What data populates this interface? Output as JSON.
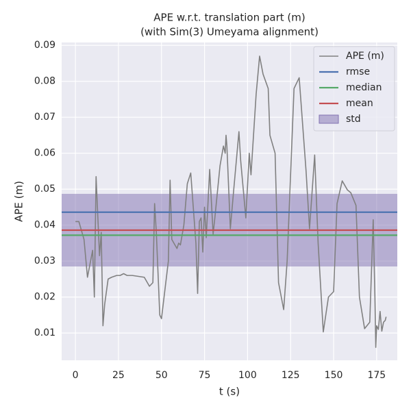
{
  "chart_data": {
    "type": "line",
    "title": [
      "APE w.r.t. translation part (m)",
      "(with Sim(3) Umeyama alignment)"
    ],
    "x_label": "t (s)",
    "y_label": "APE (m)",
    "xlim": [
      -8,
      187
    ],
    "xticks": [
      0,
      25,
      50,
      75,
      100,
      125,
      150,
      175
    ],
    "ylim": [
      0.0024,
      0.0908
    ],
    "yticks": [
      0.01,
      0.02,
      0.03,
      0.04,
      0.05,
      0.06,
      0.07,
      0.08,
      0.09
    ],
    "grid": true,
    "legend": "upper right",
    "series": [
      {
        "name": "APE (m)",
        "color": "#808080",
        "x": [
          0,
          2,
          5,
          7,
          10,
          11,
          12,
          14,
          15,
          16,
          17,
          19,
          21,
          24,
          26,
          28,
          30,
          33,
          40,
          43,
          45,
          46,
          47,
          49,
          50,
          54,
          55,
          56,
          59,
          60,
          61,
          63,
          65,
          67,
          70,
          71,
          72,
          73,
          74,
          75,
          76,
          78,
          80,
          81,
          84,
          86,
          87,
          87.5,
          88,
          90,
          92,
          95,
          96,
          99,
          101,
          102,
          105,
          107,
          109,
          112,
          113,
          116,
          118,
          121,
          123,
          127,
          130,
          134,
          136,
          139,
          141,
          144,
          147,
          150,
          152,
          155,
          158,
          160,
          163,
          165,
          168,
          171,
          173,
          174,
          174.5,
          175,
          176,
          177,
          178,
          179,
          180,
          180.5
        ],
        "values": [
          0.041,
          0.041,
          0.036,
          0.0255,
          0.033,
          0.02,
          0.0535,
          0.0315,
          0.038,
          0.012,
          0.018,
          0.025,
          0.0255,
          0.026,
          0.026,
          0.0265,
          0.026,
          0.026,
          0.0255,
          0.023,
          0.024,
          0.046,
          0.038,
          0.015,
          0.014,
          0.03,
          0.0525,
          0.036,
          0.0335,
          0.035,
          0.0345,
          0.04,
          0.0515,
          0.0545,
          0.035,
          0.021,
          0.041,
          0.042,
          0.0325,
          0.045,
          0.0365,
          0.0555,
          0.0375,
          0.042,
          0.0565,
          0.062,
          0.06,
          0.065,
          0.062,
          0.039,
          0.05,
          0.066,
          0.058,
          0.042,
          0.06,
          0.054,
          0.0765,
          0.087,
          0.082,
          0.078,
          0.065,
          0.06,
          0.024,
          0.0165,
          0.03,
          0.078,
          0.081,
          0.055,
          0.039,
          0.0595,
          0.035,
          0.0103,
          0.02,
          0.0215,
          0.046,
          0.0523,
          0.0498,
          0.049,
          0.0455,
          0.02,
          0.0112,
          0.013,
          0.0415,
          0.02,
          0.006,
          0.012,
          0.011,
          0.016,
          0.0105,
          0.013,
          0.0135,
          0.0145
        ]
      }
    ],
    "hlines": [
      {
        "name": "rmse",
        "color": "#4c72b0",
        "value": 0.0436
      },
      {
        "name": "median",
        "color": "#55a868",
        "value": 0.0372
      },
      {
        "name": "mean",
        "color": "#c44e52",
        "value": 0.0386
      }
    ],
    "band": {
      "name": "std",
      "color": "#8172b2",
      "value": 0.0101
    }
  }
}
